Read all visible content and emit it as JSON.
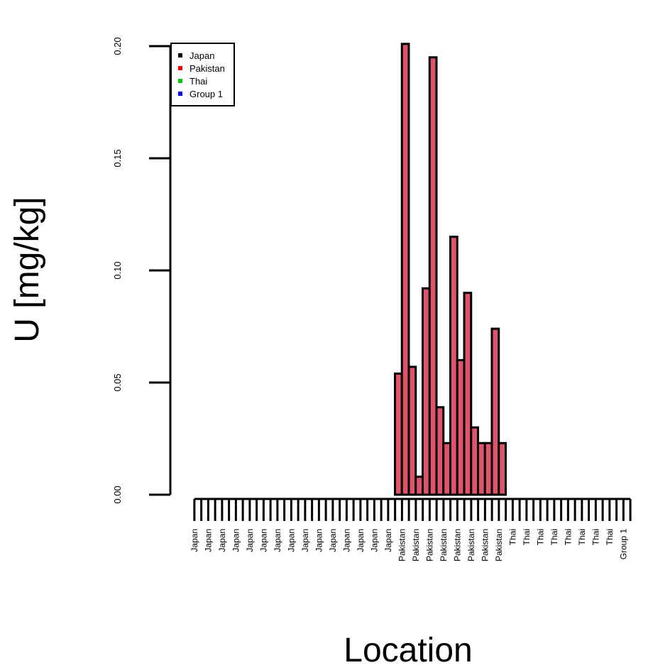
{
  "chart_data": {
    "type": "bar",
    "x_label": "Location",
    "y_label": "U [mg/kg]",
    "categories": [
      "Japan",
      null,
      "Japan",
      null,
      "Japan",
      null,
      "Japan",
      null,
      "Japan",
      null,
      "Japan",
      null,
      "Japan",
      null,
      "Japan",
      null,
      "Japan",
      null,
      "Japan",
      null,
      "Japan",
      null,
      "Japan",
      null,
      "Japan",
      null,
      "Japan",
      null,
      "Japan",
      null,
      "Pakistan",
      null,
      "Pakistan",
      null,
      "Pakistan",
      null,
      "Pakistan",
      null,
      "Pakistan",
      null,
      "Pakistan",
      null,
      "Pakistan",
      null,
      "Pakistan",
      null,
      "Thai",
      null,
      "Thai",
      null,
      "Thai",
      null,
      "Thai",
      null,
      "Thai",
      null,
      "Thai",
      null,
      "Thai",
      null,
      "Thai",
      null,
      "Group 1",
      null
    ],
    "values": [
      0,
      0,
      0,
      0,
      0,
      0,
      0,
      0,
      0,
      0,
      0,
      0,
      0,
      0,
      0,
      0,
      0,
      0,
      0,
      0,
      0,
      0,
      0,
      0,
      0,
      0,
      0,
      0,
      0,
      0,
      0.054,
      0.201,
      0.057,
      0.008,
      0.092,
      0.195,
      0.039,
      0.023,
      0.115,
      0.06,
      0.09,
      0.03,
      0.023,
      0.023,
      0.074,
      0.023,
      0,
      0,
      0,
      0,
      0,
      0,
      0,
      0,
      0,
      0,
      0,
      0,
      0,
      0,
      0,
      0,
      0,
      0
    ],
    "color": "#df536b",
    "ylim": [
      0,
      0.2
    ],
    "yticks": [
      {
        "value": 0,
        "label": "0.00"
      },
      0.05,
      {
        "value": 0.1,
        "label": "0.10"
      },
      0.15,
      {
        "value": 0.2,
        "label": "0.20"
      }
    ],
    "legend_position": "top-left",
    "legend": [
      {
        "name": "Japan",
        "color": "#000000"
      },
      {
        "name": "Pakistan",
        "color": "#ff0000"
      },
      {
        "name": "Thai",
        "color": "#00cd00"
      },
      {
        "name": "Group 1",
        "color": "#0000ff"
      }
    ]
  }
}
